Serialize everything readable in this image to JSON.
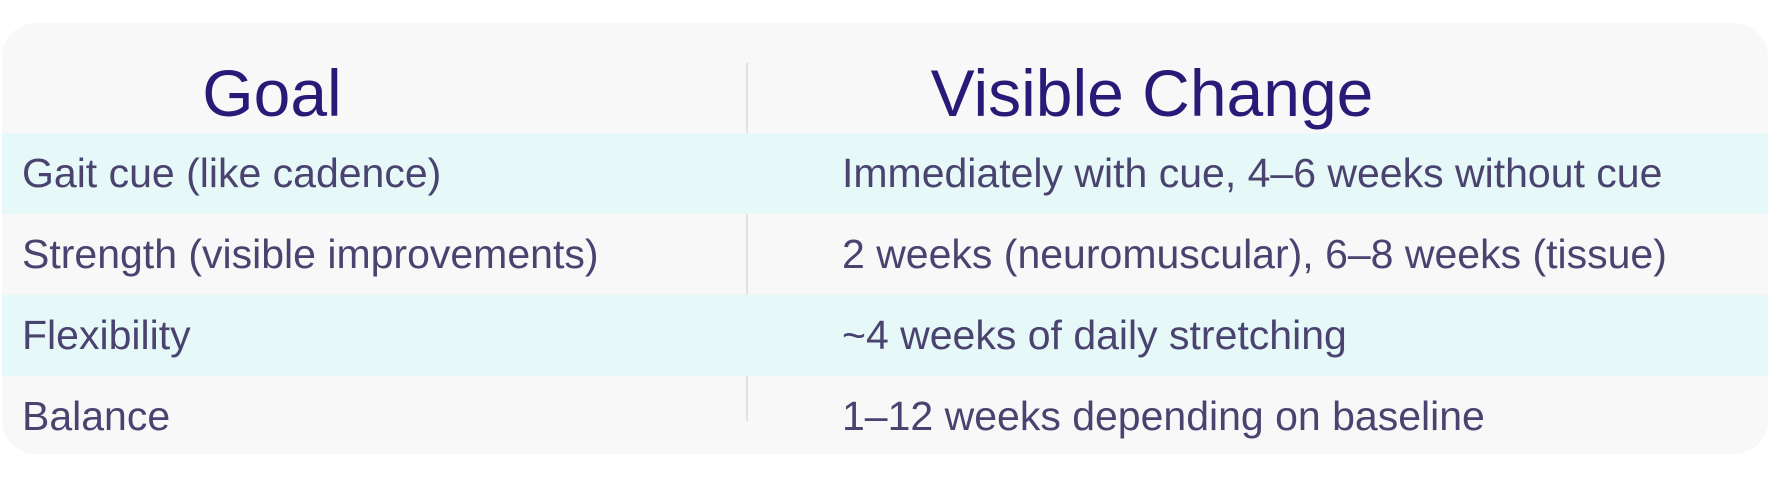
{
  "table": {
    "header": [
      "Goal",
      "Visible Change"
    ],
    "rows": [
      [
        "Gait cue (like cadence)",
        "Immediately with cue, 4–6 weeks without cue"
      ],
      [
        "Strength (visible improvements)",
        "2 weeks (neuromuscular), 6–8 weeks (tissue)"
      ],
      [
        "Flexibility",
        "~4 weeks of daily stretching"
      ],
      [
        "Balance",
        "1–12 weeks depending on baseline"
      ]
    ]
  }
}
